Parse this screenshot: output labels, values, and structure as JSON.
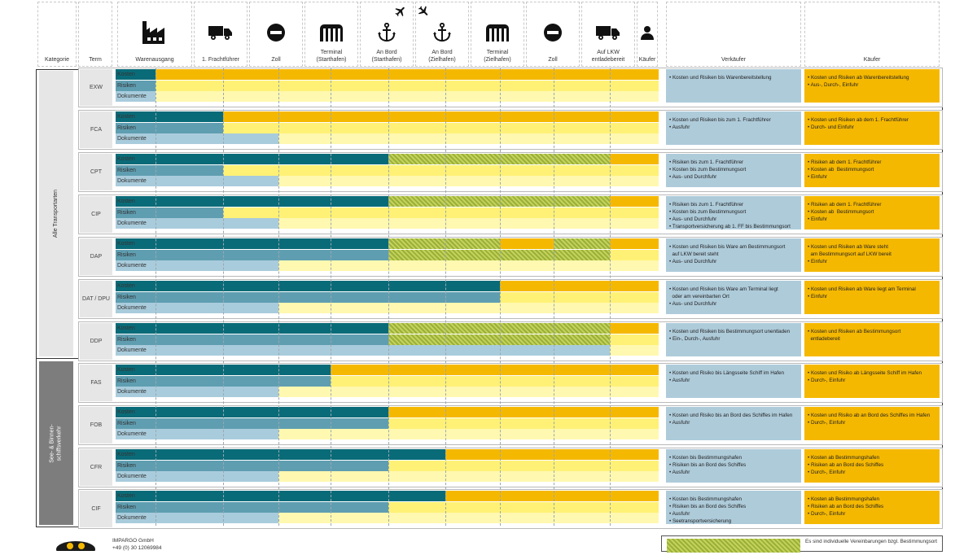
{
  "header": {
    "kategorie": "Kategorie",
    "term": "Term",
    "columns": [
      {
        "label": "Warenausgang",
        "icon": "factory-icon"
      },
      {
        "label": "1. Frachtführer",
        "icon": "truck-icon"
      },
      {
        "label": "Zoll",
        "icon": "no-entry-icon"
      },
      {
        "label": "Terminal\n(Starthafen)",
        "icon": "terminal-icon"
      },
      {
        "label": "An Bord\n(Starthafen)",
        "icon": "anchor-icon"
      },
      {
        "label": "An Bord\n(Zielhafen)",
        "icon": "anchor-icon"
      },
      {
        "label": "Terminal\n(Zielhafen)",
        "icon": "terminal-icon"
      },
      {
        "label": "Zoll",
        "icon": "no-entry-icon"
      },
      {
        "label": "Auf LKW\nentladebereit",
        "icon": "truck-icon"
      },
      {
        "label": "Käufer",
        "icon": "person-icon"
      }
    ],
    "verkaeufer": "Verkäufer",
    "kaeufer": "Käufer"
  },
  "categories": [
    {
      "label": "Alle Transportarten"
    },
    {
      "label": "See- & Binnen-\nschiffsverkehr"
    }
  ],
  "bar_labels": {
    "kosten": "Kosten",
    "risiken": "Risiken",
    "dokumente": "Dokumente"
  },
  "rows": [
    {
      "term": "EXW",
      "kosten": {
        "seller_until": 0,
        "hatch": []
      },
      "risiken": {
        "seller_until": 0
      },
      "dokumente": {
        "seller_until": 0
      },
      "seller": [
        "Kosten und Risiken bis Warenbereitstellung"
      ],
      "buyer": [
        "Kosten und Risiken ab Warenbereitstellung",
        "Aus-, Durch-, Einfuhr"
      ]
    },
    {
      "term": "FCA",
      "kosten": {
        "seller_until": 1,
        "hatch": []
      },
      "risiken": {
        "seller_until": 1
      },
      "dokumente": {
        "seller_until": 2
      },
      "seller": [
        "Kosten und Risiken bis zum 1. Frachtführer",
        "Ausfuhr"
      ],
      "buyer": [
        "Kosten und Risiken ab dem 1. Frachtführer",
        "Durch- und Einfuhr"
      ]
    },
    {
      "term": "CPT",
      "kosten": {
        "seller_until": 4,
        "hatch": [
          [
            4,
            8
          ]
        ]
      },
      "risiken": {
        "seller_until": 1
      },
      "dokumente": {
        "seller_until": 2
      },
      "seller": [
        "Risiken bis zum 1. Frachtführer",
        "Kosten bis zum Bestimmungsort",
        "Aus- und Durchfuhr"
      ],
      "buyer": [
        "Risiken ab dem 1. Frachtführer",
        "Kosten ab  Bestimmungsort",
        "Einfuhr"
      ]
    },
    {
      "term": "CIP",
      "kosten": {
        "seller_until": 4,
        "hatch": [
          [
            4,
            8
          ]
        ]
      },
      "risiken": {
        "seller_until": 1
      },
      "dokumente": {
        "seller_until": 2
      },
      "seller": [
        "Risiken bis zum 1. Frachtführer",
        "Kosten bis zum Bestimmungsort",
        "Aus- und Durchfuhr",
        "Transportversicherung ab 1. FF bis Bestimmungsort"
      ],
      "buyer": [
        "Risiken ab dem 1. Frachtführer",
        "Kosten ab  Bestimmungsort",
        "Einfuhr"
      ]
    },
    {
      "term": "DAP",
      "kosten": {
        "seller_until": 4,
        "hatch": [
          [
            4,
            6
          ],
          [
            7,
            8
          ]
        ]
      },
      "risiken": {
        "seller_until": 4,
        "hatch": [
          [
            4,
            8
          ]
        ]
      },
      "dokumente": {
        "seller_until": 2
      },
      "seller": [
        "Kosten und Risiken bis Ware am Bestimmungsort\n  auf LKW bereit steht",
        "Aus- und Durchfuhr"
      ],
      "buyer": [
        "Kosten und Risiken ab Ware steht\n  am Bestimmungsort auf LKW bereit",
        "Einfuhr"
      ]
    },
    {
      "term": "DAT / DPU",
      "kosten": {
        "seller_until": 6,
        "hatch": []
      },
      "risiken": {
        "seller_until": 6
      },
      "dokumente": {
        "seller_until": 2
      },
      "seller": [
        "Kosten und Risiken bis Ware am Terminal liegt\n  oder am vereinbarten Ort",
        "Aus- und Durchfuhr"
      ],
      "buyer": [
        "Kosten und Risiken ab Ware liegt am Terminal",
        "Einfuhr"
      ]
    },
    {
      "term": "DDP",
      "kosten": {
        "seller_until": 4,
        "hatch": [
          [
            4,
            8
          ]
        ]
      },
      "risiken": {
        "seller_until": 4,
        "hatch": [
          [
            4,
            8
          ]
        ]
      },
      "dokumente": {
        "seller_until": 8
      },
      "seller": [
        "Kosten und Risiken bis Bestimmungsort unentladen",
        "Ein-, Durch-, Ausfuhr"
      ],
      "buyer": [
        "Kosten und Risiken ab Bestimmungsort\n  entladebereit"
      ]
    },
    {
      "term": "FAS",
      "kosten": {
        "seller_until": 3,
        "hatch": []
      },
      "risiken": {
        "seller_until": 3
      },
      "dokumente": {
        "seller_until": 2
      },
      "seller": [
        "Kosten und Risiko bis Längsseite Schiff im Hafen",
        "Ausfuhr"
      ],
      "buyer": [
        "Kosten und Risiko ab Längsseite Schiff im Hafen",
        "Durch-, Einfuhr"
      ]
    },
    {
      "term": "FOB",
      "kosten": {
        "seller_until": 4,
        "hatch": []
      },
      "risiken": {
        "seller_until": 4
      },
      "dokumente": {
        "seller_until": 2
      },
      "seller": [
        "Kosten und Risiko bis an Bord des Schiffes im Hafen",
        "Ausfuhr"
      ],
      "buyer": [
        "Kosten und Risiko ab an Bord des Schiffes im Hafen",
        "Durch-, Einfuhr"
      ]
    },
    {
      "term": "CFR",
      "kosten": {
        "seller_until": 5,
        "hatch": []
      },
      "risiken": {
        "seller_until": 4
      },
      "dokumente": {
        "seller_until": 2
      },
      "seller": [
        "Kosten bis Bestimmungshafen",
        "Risiken bis an Bord des Schiffes",
        "Ausfuhr"
      ],
      "buyer": [
        "Kosten ab Bestimmungshafen",
        "Risiken ab an Bord des Schiffes",
        "Durch-, Einfuhr"
      ]
    },
    {
      "term": "CIF",
      "kosten": {
        "seller_until": 5,
        "hatch": []
      },
      "risiken": {
        "seller_until": 4
      },
      "dokumente": {
        "seller_until": 2
      },
      "seller": [
        "Kosten bis Bestimmungshafen",
        "Risiken bis an Bord des Schiffes",
        "Ausfuhr",
        "Seetransportversicherung"
      ],
      "buyer": [
        "Kosten ab Bestimmungshafen",
        "Risiken ab an Bord des Schiffes",
        "Durch-, Einfuhr"
      ]
    }
  ],
  "footer": {
    "company": "IMPARGO GmbH",
    "phone": "+49 (0) 30 12069984",
    "legend_text": "Es sind individuelle Vereinbarungen bzgl. Bestimmungsort"
  },
  "colors": {
    "seller_dark": "#0a6b78",
    "seller_mid": "#5f9eb1",
    "seller_light": "#a9ccdc",
    "buyer_orange": "#f5b800",
    "buyer_yellow": "#fff176",
    "buyer_light_yellow": "#fff8b0",
    "hatch": "#9ab03a"
  }
}
